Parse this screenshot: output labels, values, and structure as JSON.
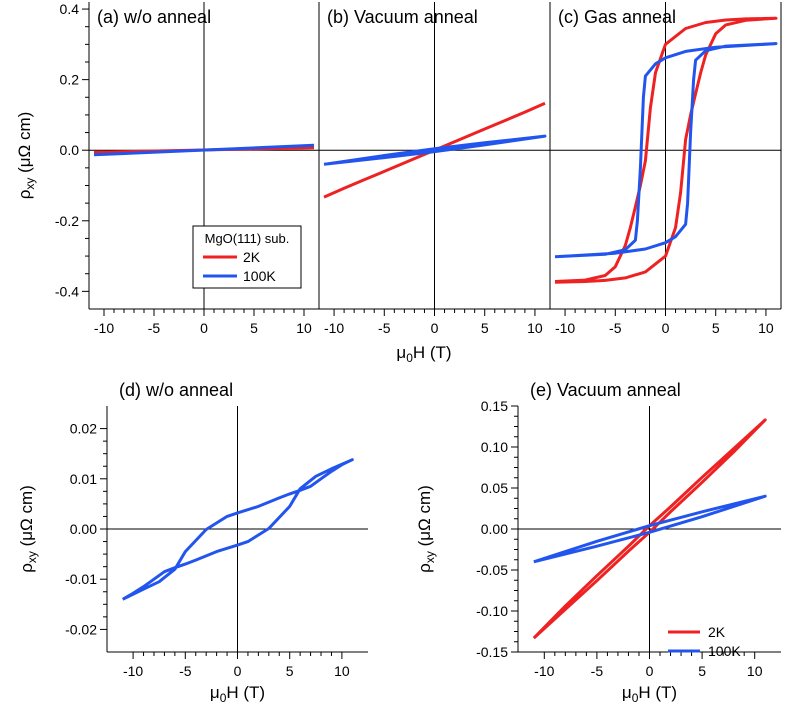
{
  "colors": {
    "c2K": "#ee2222",
    "c100K": "#2255ee",
    "axis": "#000000"
  },
  "chart_data": [
    {
      "id": "a",
      "type": "line",
      "title": "(a) w/o anneal",
      "xlabel": "",
      "ylabel": "ρxy (μΩ cm)",
      "xlim": [
        -11.5,
        11.5
      ],
      "ylim": [
        -0.45,
        0.42
      ],
      "xticks": [
        "-10",
        "-5",
        "0",
        "5",
        "10"
      ],
      "yticks": [
        "0.4",
        "0.2",
        "0.0",
        "-0.2",
        "-0.4"
      ],
      "series": [
        {
          "name": "2K",
          "color": "#ee2222",
          "x": [
            -11,
            11
          ],
          "y": [
            -0.006,
            0.007
          ]
        },
        {
          "name": "100K",
          "color": "#2255ee",
          "x": [
            -11,
            11
          ],
          "y": [
            -0.013,
            0.014
          ]
        }
      ]
    },
    {
      "id": "b",
      "type": "line",
      "title": "(b) Vacuum anneal",
      "xlabel": "",
      "ylabel": "",
      "xlim": [
        -11.5,
        11.5
      ],
      "ylim": [
        -0.45,
        0.42
      ],
      "xticks": [
        "-10",
        "-5",
        "0",
        "5",
        "10"
      ],
      "series": [
        {
          "name": "2K",
          "color": "#ee2222",
          "x": [
            -11,
            -9,
            -7,
            -5,
            -3,
            -1,
            0,
            1,
            3,
            5,
            7,
            9,
            11
          ],
          "y": [
            -0.133,
            -0.108,
            -0.084,
            -0.06,
            -0.036,
            -0.012,
            0.0,
            0.012,
            0.036,
            0.06,
            0.084,
            0.108,
            0.133
          ]
        },
        {
          "name": "100K",
          "color": "#2255ee",
          "x": [
            -11,
            -5,
            0,
            5,
            11,
            5,
            0,
            -5,
            -11
          ],
          "y": [
            -0.04,
            -0.021,
            -0.004,
            0.015,
            0.04,
            0.021,
            0.004,
            -0.015,
            -0.04
          ]
        }
      ]
    },
    {
      "id": "c",
      "type": "line",
      "title": "(c) Gas anneal",
      "xlabel": "",
      "ylabel": "",
      "xlim": [
        -11.5,
        11.5
      ],
      "ylim": [
        -0.45,
        0.42
      ],
      "xticks": [
        "-10",
        "-5",
        "0",
        "5",
        "10"
      ],
      "series": [
        {
          "name": "2K",
          "color": "#ee2222",
          "x": [
            -11,
            -8,
            -6,
            -5,
            -4,
            -3.5,
            -3,
            -2.5,
            -2,
            -1.5,
            -1,
            0,
            2,
            4,
            6,
            8,
            11,
            8,
            6,
            5,
            4,
            3.5,
            3,
            2.5,
            2,
            1.5,
            1,
            0,
            -2,
            -4,
            -6,
            -8,
            -11
          ],
          "y": [
            -0.372,
            -0.368,
            -0.355,
            -0.33,
            -0.27,
            -0.22,
            -0.16,
            -0.1,
            -0.03,
            0.12,
            0.22,
            0.3,
            0.345,
            0.362,
            0.369,
            0.372,
            0.374,
            0.368,
            0.355,
            0.33,
            0.27,
            0.22,
            0.16,
            0.1,
            0.03,
            -0.12,
            -0.22,
            -0.3,
            -0.345,
            -0.362,
            -0.369,
            -0.372,
            -0.374
          ]
        },
        {
          "name": "100K",
          "color": "#2255ee",
          "x": [
            -11,
            -6,
            -4,
            -3,
            -2.8,
            -2.5,
            -2.2,
            -2,
            -1,
            0,
            2,
            5,
            11,
            6,
            4,
            3,
            2.8,
            2.5,
            2.2,
            2,
            1,
            0,
            -2,
            -5,
            -11
          ],
          "y": [
            -0.302,
            -0.295,
            -0.282,
            -0.255,
            -0.2,
            -0.05,
            0.15,
            0.21,
            0.245,
            0.262,
            0.28,
            0.292,
            0.302,
            0.295,
            0.282,
            0.255,
            0.2,
            0.05,
            -0.15,
            -0.21,
            -0.245,
            -0.262,
            -0.28,
            -0.292,
            -0.302
          ]
        }
      ]
    },
    {
      "id": "d",
      "type": "line",
      "title": "(d) w/o anneal",
      "xlabel": "μ0H (T)",
      "ylabel": "ρxy (μΩ cm)",
      "xlim": [
        -12.5,
        12.5
      ],
      "ylim": [
        -0.0245,
        0.0245
      ],
      "xticks": [
        "-10",
        "-5",
        "0",
        "5",
        "10"
      ],
      "yticks": [
        "0.02",
        "0.01",
        "0.00",
        "-0.01",
        "-0.02"
      ],
      "series": [
        {
          "name": "100K",
          "color": "#2255ee",
          "x": [
            -11,
            -9,
            -7.5,
            -6,
            -5,
            -3,
            -1,
            0,
            2,
            4,
            5,
            6,
            7,
            8,
            9,
            10,
            11,
            9,
            7.5,
            6,
            5,
            3,
            1,
            0,
            -2,
            -4,
            -5,
            -6,
            -7,
            -8,
            -9,
            -10,
            -11
          ],
          "y": [
            -0.014,
            -0.012,
            -0.0105,
            -0.008,
            -0.0045,
            -0.0001,
            0.0025,
            0.0032,
            0.0045,
            0.0062,
            0.007,
            0.0077,
            0.0085,
            0.01,
            0.0115,
            0.0128,
            0.0138,
            0.012,
            0.0105,
            0.008,
            0.0045,
            0.0001,
            -0.0025,
            -0.0032,
            -0.0045,
            -0.0062,
            -0.007,
            -0.0077,
            -0.0085,
            -0.01,
            -0.0115,
            -0.0128,
            -0.014
          ]
        }
      ]
    },
    {
      "id": "e",
      "type": "line",
      "title": "(e) Vacuum anneal",
      "xlabel": "μ0H (T)",
      "ylabel": "ρxy (μΩ cm)",
      "xlim": [
        -12.5,
        12.5
      ],
      "ylim": [
        -0.15,
        0.15
      ],
      "xticks": [
        "-10",
        "-5",
        "0",
        "5",
        "10"
      ],
      "yticks": [
        "0.15",
        "0.10",
        "0.05",
        "0.00",
        "-0.05",
        "-0.10",
        "-0.15"
      ],
      "series": [
        {
          "name": "2K",
          "color": "#ee2222",
          "x": [
            -11,
            -8,
            -5,
            -2,
            0,
            2,
            5,
            8,
            11,
            8,
            5,
            2,
            0,
            -2,
            -5,
            -8,
            -11
          ],
          "y": [
            -0.133,
            -0.098,
            -0.063,
            -0.027,
            -0.004,
            0.021,
            0.057,
            0.094,
            0.133,
            0.098,
            0.063,
            0.027,
            0.004,
            -0.021,
            -0.057,
            -0.094,
            -0.133
          ]
        },
        {
          "name": "100K",
          "color": "#2255ee",
          "x": [
            -11,
            -5,
            0,
            5,
            11,
            5,
            0,
            -5,
            -11
          ],
          "y": [
            -0.04,
            -0.021,
            -0.004,
            0.015,
            0.04,
            0.021,
            0.004,
            -0.015,
            -0.04
          ]
        }
      ]
    }
  ],
  "legend_top": {
    "title": "MgO(111) sub.",
    "items": [
      {
        "label": "2K",
        "color": "#ee2222"
      },
      {
        "label": "100K",
        "color": "#2255ee"
      }
    ]
  },
  "legend_e": {
    "items": [
      {
        "label": "2K",
        "color": "#ee2222"
      },
      {
        "label": "100K",
        "color": "#2255ee"
      }
    ]
  },
  "shared_xlabel_top": "μ0H (T)"
}
